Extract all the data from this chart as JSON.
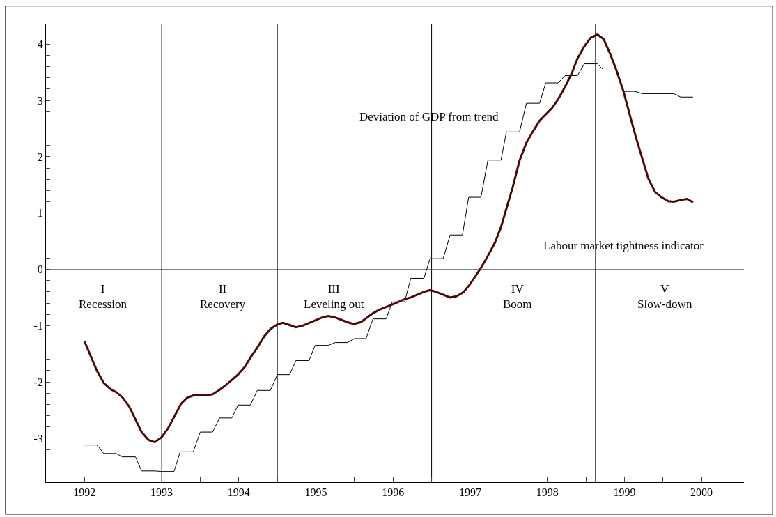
{
  "chart_data": {
    "type": "line",
    "xlim": [
      1991.5,
      2000.55
    ],
    "xticks": [
      1992,
      {
        "value": 1992.5,
        "label": null
      },
      1993,
      {
        "value": 1993.5,
        "label": null
      },
      1994,
      {
        "value": 1994.5,
        "label": null
      },
      1995,
      {
        "value": 1995.5,
        "label": null
      },
      1996,
      {
        "value": 1996.5,
        "label": null
      },
      1997,
      {
        "value": 1997.5,
        "label": null
      },
      1998,
      {
        "value": 1998.5,
        "label": null
      },
      1999,
      {
        "value": 1999.5,
        "label": null
      },
      2000,
      {
        "value": 2000.5,
        "label": null
      }
    ],
    "ylim": [
      -3.78,
      4.35
    ],
    "yticks": [
      {
        "value": -3.6,
        "label": null
      },
      {
        "value": -3.4,
        "label": null
      },
      {
        "value": -3.2,
        "label": null
      },
      -3,
      {
        "value": -2.8,
        "label": null
      },
      {
        "value": -2.6,
        "label": null
      },
      {
        "value": -2.4,
        "label": null
      },
      {
        "value": -2.2,
        "label": null
      },
      -2,
      {
        "value": -1.8,
        "label": null
      },
      {
        "value": -1.6,
        "label": null
      },
      {
        "value": -1.4,
        "label": null
      },
      {
        "value": -1.2,
        "label": null
      },
      -1,
      {
        "value": -0.8,
        "label": null
      },
      {
        "value": -0.6,
        "label": null
      },
      {
        "value": -0.4,
        "label": null
      },
      {
        "value": -0.2,
        "label": null
      },
      0,
      {
        "value": 0.2,
        "label": null
      },
      {
        "value": 0.4,
        "label": null
      },
      {
        "value": 0.6,
        "label": null
      },
      {
        "value": 0.8,
        "label": null
      },
      1,
      {
        "value": 1.2,
        "label": null
      },
      {
        "value": 1.4,
        "label": null
      },
      {
        "value": 1.6,
        "label": null
      },
      {
        "value": 1.8,
        "label": null
      },
      2,
      {
        "value": 2.2,
        "label": null
      },
      {
        "value": 2.4,
        "label": null
      },
      {
        "value": 2.6,
        "label": null
      },
      {
        "value": 2.8,
        "label": null
      },
      3,
      {
        "value": 3.2,
        "label": null
      },
      {
        "value": 3.4,
        "label": null
      },
      {
        "value": 3.6,
        "label": null
      },
      {
        "value": 3.8,
        "label": null
      },
      4,
      {
        "value": 4.2,
        "label": null
      }
    ],
    "grid": false,
    "marker": "none",
    "line_style": "solid",
    "series": [
      {
        "color": "#000000",
        "x": [
          1992.0,
          1992.16,
          1992.25,
          1992.41,
          1992.49,
          1992.66,
          1992.74,
          1992.91,
          1993.0,
          1993.16,
          1993.24,
          1993.41,
          1993.5,
          1993.66,
          1993.75,
          1993.91,
          1993.99,
          1994.15,
          1994.24,
          1994.41,
          1994.5,
          1994.66,
          1994.74,
          1994.91,
          1994.99,
          1995.16,
          1995.25,
          1995.41,
          1995.5,
          1995.65,
          1995.74,
          1995.91,
          1995.99,
          1996.15,
          1996.23,
          1996.4,
          1996.48,
          1996.65,
          1996.74,
          1996.9,
          1996.98,
          1997.14,
          1997.23,
          1997.4,
          1997.47,
          1997.64,
          1997.73,
          1997.9,
          1997.98,
          1998.14,
          1998.23,
          1998.39,
          1998.48,
          1998.65,
          1998.73,
          1998.9,
          1998.99,
          1999.14,
          1999.23,
          1999.64,
          1999.73,
          1999.89
        ],
        "values": [
          -3.12,
          -3.12,
          -3.27,
          -3.27,
          -3.33,
          -3.33,
          -3.58,
          -3.58,
          -3.59,
          -3.59,
          -3.24,
          -3.24,
          -2.89,
          -2.89,
          -2.64,
          -2.64,
          -2.41,
          -2.41,
          -2.15,
          -2.15,
          -1.87,
          -1.87,
          -1.62,
          -1.62,
          -1.35,
          -1.35,
          -1.3,
          -1.3,
          -1.23,
          -1.23,
          -0.88,
          -0.88,
          -0.58,
          -0.58,
          -0.16,
          -0.16,
          0.19,
          0.19,
          0.61,
          0.61,
          1.28,
          1.28,
          1.94,
          1.94,
          2.44,
          2.44,
          2.95,
          2.95,
          3.31,
          3.31,
          3.44,
          3.44,
          3.65,
          3.65,
          3.54,
          3.54,
          3.16,
          3.16,
          3.12,
          3.12,
          3.06,
          3.06
        ]
      },
      {
        "color": "#4b0808",
        "x": [
          1992.0,
          1992.16,
          1992.25,
          1992.34,
          1992.41,
          1992.49,
          1992.58,
          1992.74,
          1992.83,
          1992.91,
          1993.0,
          1993.08,
          1993.17,
          1993.25,
          1993.33,
          1993.41,
          1993.58,
          1993.66,
          1993.74,
          1993.82,
          1993.99,
          1994.08,
          1994.15,
          1994.24,
          1994.33,
          1994.41,
          1994.5,
          1994.57,
          1994.66,
          1994.74,
          1994.83,
          1995.09,
          1995.16,
          1995.24,
          1995.41,
          1995.49,
          1995.58,
          1995.74,
          1995.82,
          1996.0,
          1996.15,
          1996.23,
          1996.4,
          1996.48,
          1996.56,
          1996.74,
          1996.82,
          1996.91,
          1996.99,
          1997.07,
          1997.15,
          1997.23,
          1997.32,
          1997.4,
          1997.47,
          1997.55,
          1997.64,
          1997.73,
          1997.81,
          1997.9,
          1997.98,
          1998.06,
          1998.14,
          1998.23,
          1998.32,
          1998.39,
          1998.48,
          1998.56,
          1998.65,
          1998.73,
          1998.82,
          1998.9,
          1998.99,
          1999.07,
          1999.15,
          1999.24,
          1999.31,
          1999.4,
          1999.48,
          1999.57,
          1999.64,
          1999.73,
          1999.81,
          1999.89
        ],
        "values": [
          -1.28,
          -1.8,
          -2.02,
          -2.13,
          -2.18,
          -2.27,
          -2.44,
          -2.89,
          -3.03,
          -3.07,
          -2.98,
          -2.83,
          -2.6,
          -2.39,
          -2.28,
          -2.24,
          -2.24,
          -2.22,
          -2.15,
          -2.07,
          -1.87,
          -1.73,
          -1.57,
          -1.39,
          -1.19,
          -1.06,
          -0.98,
          -0.95,
          -0.99,
          -1.03,
          -1.0,
          -0.85,
          -0.83,
          -0.85,
          -0.94,
          -0.97,
          -0.94,
          -0.78,
          -0.72,
          -0.62,
          -0.53,
          -0.5,
          -0.4,
          -0.37,
          -0.4,
          -0.5,
          -0.48,
          -0.41,
          -0.28,
          -0.12,
          0.05,
          0.24,
          0.47,
          0.75,
          1.08,
          1.45,
          1.93,
          2.25,
          2.44,
          2.64,
          2.75,
          2.86,
          3.02,
          3.24,
          3.49,
          3.74,
          3.96,
          4.11,
          4.17,
          4.09,
          3.81,
          3.52,
          3.15,
          2.74,
          2.34,
          1.93,
          1.61,
          1.37,
          1.28,
          1.21,
          1.2,
          1.23,
          1.25,
          1.19
        ]
      }
    ],
    "ref_lines": [
      {
        "axis": "y",
        "value": 0,
        "color": "#808080"
      },
      {
        "axis": "x",
        "value": 1993,
        "color": "#000000"
      },
      {
        "axis": "x",
        "value": 1994.5,
        "color": "#000000"
      },
      {
        "axis": "x",
        "value": 1996.5,
        "color": "#000000"
      },
      {
        "axis": "x",
        "value": 1998.625,
        "color": "#000000"
      }
    ],
    "annotations": [
      {
        "text": "Deviation of GDP from trend",
        "x": 1996.47,
        "y": 2.71
      },
      "Labour market tightness indicator",
      "I\nRecession",
      "II\nRecovery",
      "III\nLeveling out",
      "IV\nBoom",
      "V\nSlow-down"
    ]
  }
}
